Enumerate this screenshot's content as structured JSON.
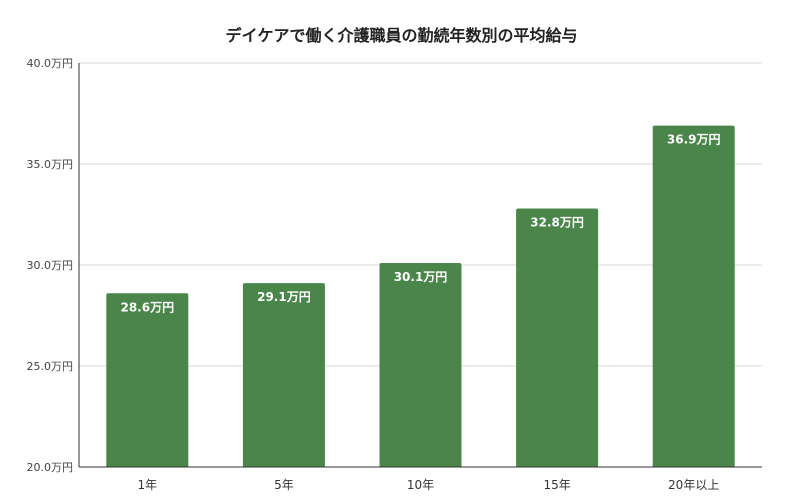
{
  "chart_data": {
    "type": "bar",
    "title": "デイケアで働く介護職員の勤続年数別の平均給与",
    "categories": [
      "1年",
      "5年",
      "10年",
      "15年",
      "20年以上"
    ],
    "values": [
      28.6,
      29.1,
      30.1,
      32.8,
      36.9
    ],
    "data_labels": [
      "28.6万円",
      "29.1万円",
      "30.1万円",
      "32.8万円",
      "36.9万円"
    ],
    "ylim": [
      20.0,
      40.0
    ],
    "y_ticks": [
      20.0,
      25.0,
      30.0,
      35.0,
      40.0
    ],
    "y_tick_labels": [
      "20.0万円",
      "25.0万円",
      "30.0万円",
      "35.0万円",
      "40.0万円"
    ],
    "xlabel": "",
    "ylabel": "",
    "grid": true,
    "legend": "none",
    "bar_color": "#4a8549",
    "grid_color": "#d9d9d9",
    "axis_color": "#333333"
  }
}
